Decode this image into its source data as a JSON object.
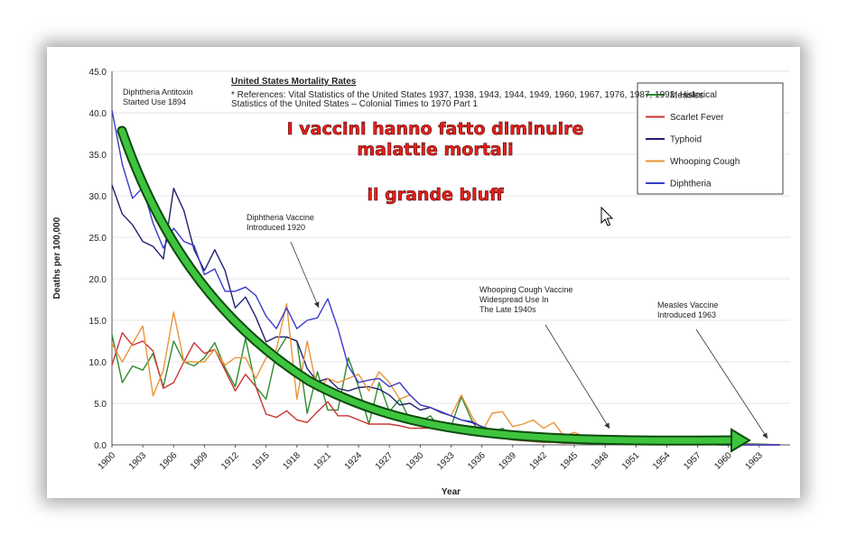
{
  "chart_data": {
    "type": "line",
    "title": "United States Mortality Rates",
    "subtitle_lines": [
      "* References: Vital Statistics of the United States 1937, 1938, 1943, 1944, 1949, 1960, 1967, 1976, 1987, 1992; Historical",
      "Statistics of the United States – Colonial Times to 1970 Part 1"
    ],
    "xlabel": "Year",
    "ylabel": "Deaths per 100,000",
    "xlim": [
      1900,
      1966
    ],
    "ylim": [
      0,
      45
    ],
    "x_ticks": [
      "1900",
      "1903",
      "1906",
      "1909",
      "1912",
      "1915",
      "1918",
      "1921",
      "1924",
      "1927",
      "1930",
      "1933",
      "1936",
      "1939",
      "1942",
      "1945",
      "1948",
      "1951",
      "1954",
      "1957",
      "1960",
      "1963"
    ],
    "y_ticks": [
      "0.0",
      "5.0",
      "10.0",
      "15.0",
      "20.0",
      "25.0",
      "30.0",
      "35.0",
      "40.0",
      "45.0"
    ],
    "legend_position": "top-right",
    "series": [
      {
        "name": "Measles",
        "color": "#2e8b2e",
        "x": [
          1900,
          1901,
          1902,
          1903,
          1904,
          1905,
          1906,
          1907,
          1908,
          1909,
          1910,
          1911,
          1912,
          1913,
          1914,
          1915,
          1916,
          1917,
          1918,
          1919,
          1920,
          1921,
          1922,
          1923,
          1924,
          1925,
          1926,
          1927,
          1928,
          1929,
          1930,
          1931,
          1932,
          1933,
          1934,
          1935,
          1936,
          1937,
          1938,
          1939,
          1940,
          1941,
          1942,
          1943,
          1944,
          1945,
          1946,
          1947,
          1948,
          1950,
          1955,
          1960,
          1963,
          1965
        ],
        "y": [
          13.3,
          7.5,
          9.5,
          9.0,
          11.0,
          7.0,
          12.5,
          10.0,
          9.5,
          10.5,
          12.3,
          9.3,
          7.0,
          12.8,
          7.0,
          5.5,
          11.0,
          13.0,
          12.5,
          3.8,
          8.8,
          4.2,
          4.2,
          10.5,
          7.0,
          2.5,
          7.5,
          4.0,
          5.5,
          3.0,
          2.8,
          3.5,
          1.8,
          2.2,
          5.8,
          3.0,
          1.0,
          1.5,
          2.0,
          1.0,
          0.5,
          1.5,
          0.7,
          0.5,
          0.4,
          0.3,
          0.3,
          0.2,
          0.4,
          0.3,
          0.2,
          0.2,
          0.1,
          0.0
        ]
      },
      {
        "name": "Scarlet Fever",
        "color": "#cc3333",
        "x": [
          1900,
          1901,
          1902,
          1903,
          1904,
          1905,
          1906,
          1907,
          1908,
          1909,
          1910,
          1911,
          1912,
          1913,
          1914,
          1915,
          1916,
          1917,
          1918,
          1919,
          1920,
          1921,
          1922,
          1923,
          1924,
          1925,
          1926,
          1927,
          1928,
          1929,
          1930,
          1931,
          1932,
          1933,
          1934,
          1935,
          1936,
          1937,
          1938,
          1939,
          1940,
          1941,
          1942,
          1943,
          1944,
          1945,
          1950,
          1955,
          1960,
          1965
        ],
        "y": [
          9.6,
          13.5,
          12.0,
          12.5,
          11.3,
          6.8,
          7.5,
          10.0,
          12.3,
          11.0,
          11.5,
          9.0,
          6.5,
          8.5,
          7.0,
          3.7,
          3.3,
          4.1,
          3.0,
          2.7,
          4.0,
          5.2,
          3.5,
          3.5,
          3.0,
          2.5,
          2.5,
          2.5,
          2.3,
          2.0,
          2.0,
          2.0,
          1.8,
          1.8,
          1.6,
          1.5,
          1.3,
          1.0,
          0.8,
          0.6,
          0.5,
          0.4,
          0.3,
          0.3,
          0.2,
          0.2,
          0.1,
          0.1,
          0.0,
          0.0
        ]
      },
      {
        "name": "Typhoid",
        "color": "#202070",
        "x": [
          1900,
          1901,
          1902,
          1903,
          1904,
          1905,
          1906,
          1907,
          1908,
          1909,
          1910,
          1911,
          1912,
          1913,
          1914,
          1915,
          1916,
          1917,
          1918,
          1919,
          1920,
          1921,
          1922,
          1923,
          1924,
          1925,
          1926,
          1927,
          1928,
          1929,
          1930,
          1931,
          1932,
          1933,
          1934,
          1935,
          1936,
          1937,
          1938,
          1939,
          1940,
          1942,
          1944,
          1946,
          1948,
          1950,
          1955,
          1960,
          1965
        ],
        "y": [
          31.3,
          27.8,
          26.5,
          24.5,
          23.9,
          22.4,
          30.9,
          28.2,
          23.5,
          21.0,
          23.5,
          21.0,
          16.5,
          17.8,
          15.4,
          12.4,
          13.0,
          13.0,
          12.5,
          9.2,
          7.6,
          8.0,
          6.8,
          6.5,
          6.9,
          7.0,
          6.7,
          6.0,
          4.8,
          5.0,
          4.2,
          4.5,
          3.9,
          3.5,
          3.0,
          2.7,
          2.2,
          1.8,
          1.5,
          1.2,
          1.0,
          0.8,
          0.5,
          0.4,
          0.3,
          0.2,
          0.1,
          0.0,
          0.0
        ]
      },
      {
        "name": "Whooping Cough",
        "color": "#e8953a",
        "x": [
          1900,
          1901,
          1902,
          1903,
          1904,
          1905,
          1906,
          1907,
          1908,
          1909,
          1910,
          1911,
          1912,
          1913,
          1914,
          1915,
          1916,
          1917,
          1918,
          1919,
          1920,
          1921,
          1922,
          1923,
          1924,
          1925,
          1926,
          1927,
          1928,
          1929,
          1930,
          1931,
          1932,
          1933,
          1934,
          1935,
          1936,
          1937,
          1938,
          1939,
          1940,
          1941,
          1942,
          1943,
          1944,
          1945,
          1946,
          1947,
          1948,
          1950,
          1955,
          1960,
          1965
        ],
        "y": [
          12.2,
          10.0,
          12.2,
          14.3,
          5.9,
          9.0,
          16.0,
          10.0,
          10.0,
          10.0,
          11.5,
          9.6,
          10.5,
          10.5,
          8.0,
          10.5,
          11.5,
          17.0,
          5.5,
          12.5,
          6.5,
          8.0,
          7.5,
          8.0,
          8.5,
          6.5,
          8.8,
          7.5,
          5.5,
          6.0,
          4.8,
          4.5,
          4.0,
          3.5,
          6.0,
          3.5,
          1.5,
          3.8,
          4.0,
          2.2,
          2.5,
          3.0,
          2.0,
          2.7,
          1.0,
          1.5,
          1.0,
          0.8,
          0.6,
          0.5,
          0.3,
          0.1,
          0.0
        ]
      },
      {
        "name": "Diphtheria",
        "color": "#3a3acc",
        "x": [
          1900,
          1901,
          1902,
          1903,
          1904,
          1905,
          1906,
          1907,
          1908,
          1909,
          1910,
          1911,
          1912,
          1913,
          1914,
          1915,
          1916,
          1917,
          1918,
          1919,
          1920,
          1921,
          1922,
          1923,
          1924,
          1925,
          1926,
          1927,
          1928,
          1929,
          1930,
          1931,
          1932,
          1933,
          1934,
          1935,
          1936,
          1937,
          1938,
          1939,
          1940,
          1942,
          1944,
          1946,
          1948,
          1950,
          1955,
          1960,
          1965
        ],
        "y": [
          40.3,
          33.8,
          29.7,
          31.0,
          26.7,
          23.7,
          26.1,
          24.5,
          24.0,
          20.5,
          21.2,
          18.5,
          18.5,
          19.0,
          18.0,
          15.5,
          14.0,
          16.5,
          14.0,
          15.0,
          15.3,
          17.6,
          14.0,
          9.5,
          7.5,
          7.8,
          8.0,
          7.0,
          7.5,
          6.0,
          4.8,
          4.5,
          4.0,
          3.5,
          3.0,
          2.8,
          2.2,
          1.8,
          1.6,
          1.2,
          1.1,
          0.8,
          0.6,
          0.5,
          0.4,
          0.2,
          0.1,
          0.0,
          0.0
        ]
      }
    ],
    "annotations": [
      {
        "lines": [
          "Diphtheria Antitoxin",
          "Started Use 1894"
        ]
      },
      {
        "lines": [
          "Diphtheria Vaccine",
          "Introduced 1920"
        ]
      },
      {
        "lines": [
          "Whooping Cough Vaccine",
          "Widespread Use In",
          "The Late 1940s"
        ]
      },
      {
        "lines": [
          "Measles Vaccine",
          "Introduced 1963"
        ]
      }
    ],
    "overlay_text": [
      "I vaccini hanno fatto diminuire",
      "malattie mortali",
      "il grande bluff"
    ]
  }
}
